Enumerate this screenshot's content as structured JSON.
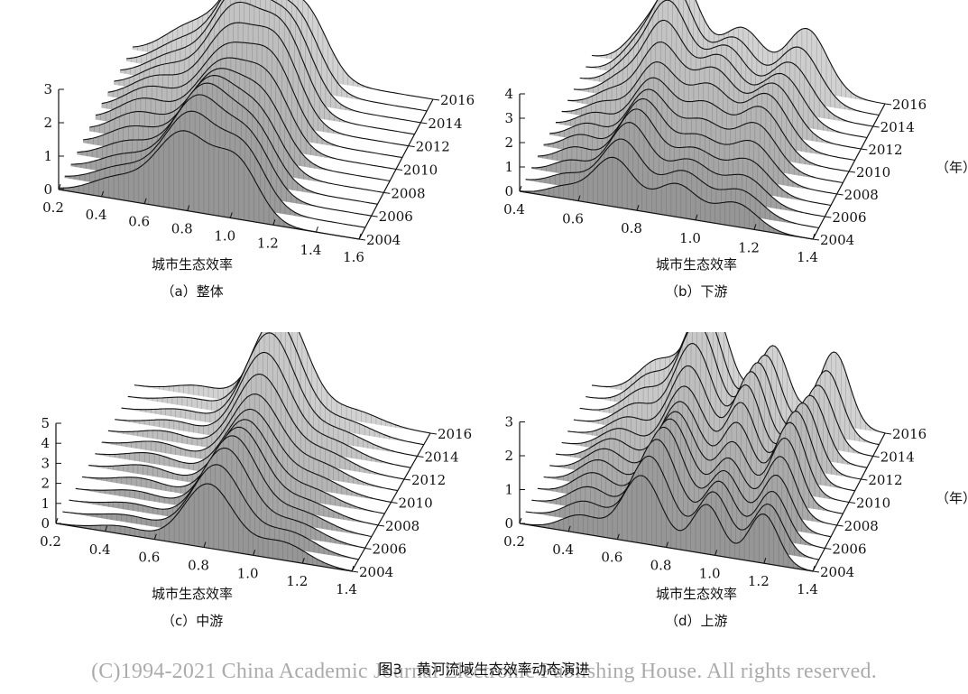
{
  "figure_title": "图3　黄河流域生态效率动态演进",
  "watermark": "(C)1994-2021 China Academic Journal Electronic Publishing House. All rights reserved.",
  "year_unit": "（年）",
  "chart_data": [
    {
      "type": "surface",
      "caption": "（a）整体",
      "xlabel": "城市生态效率",
      "x_ticks": [
        "0.2",
        "0.4",
        "0.6",
        "0.8",
        "1.0",
        "1.2",
        "1.4",
        "1.6"
      ],
      "xlim": [
        0.2,
        1.6
      ],
      "z_ticks": [
        "0",
        "1",
        "2",
        "3"
      ],
      "zlim": [
        0,
        3
      ],
      "y_ticks": [
        "2004",
        "2006",
        "2008",
        "2010",
        "2012",
        "2014",
        "2016"
      ],
      "years": [
        2004,
        2005,
        2006,
        2007,
        2008,
        2009,
        2010,
        2011,
        2012,
        2013,
        2014,
        2015,
        2016
      ],
      "peaks": [
        {
          "x": 0.78,
          "height_start": 2.3,
          "height_end": 2.9,
          "width": 0.13
        },
        {
          "x": 1.02,
          "height_start": 1.4,
          "height_end": 2.0,
          "width": 0.1
        },
        {
          "x": 0.45,
          "height_start": 0.6,
          "height_end": 0.9,
          "width": 0.12
        }
      ]
    },
    {
      "type": "surface",
      "caption": "（b）下游",
      "xlabel": "城市生态效率",
      "x_ticks": [
        "0.4",
        "0.6",
        "0.8",
        "1.0",
        "1.2",
        "1.4"
      ],
      "xlim": [
        0.4,
        1.4
      ],
      "z_ticks": [
        "0",
        "1",
        "2",
        "3",
        "4"
      ],
      "zlim": [
        0,
        4
      ],
      "y_ticks": [
        "2004",
        "2006",
        "2008",
        "2010",
        "2012",
        "2014",
        "2016"
      ],
      "years": [
        2004,
        2005,
        2006,
        2007,
        2008,
        2009,
        2010,
        2011,
        2012,
        2013,
        2014,
        2015,
        2016
      ],
      "peaks": [
        {
          "x": 0.72,
          "height_start": 2.0,
          "height_end": 3.6,
          "width": 0.07
        },
        {
          "x": 0.92,
          "height_start": 1.2,
          "height_end": 2.4,
          "width": 0.07
        },
        {
          "x": 1.12,
          "height_start": 1.0,
          "height_end": 2.6,
          "width": 0.07
        },
        {
          "x": 0.55,
          "height_start": 0.5,
          "height_end": 0.9,
          "width": 0.06
        }
      ]
    },
    {
      "type": "surface",
      "caption": "（c）中游",
      "xlabel": "城市生态效率",
      "x_ticks": [
        "0.2",
        "0.4",
        "0.6",
        "0.8",
        "1.0",
        "1.2",
        "1.4"
      ],
      "xlim": [
        0.2,
        1.4
      ],
      "z_ticks": [
        "0",
        "1",
        "2",
        "3",
        "4",
        "5"
      ],
      "zlim": [
        0,
        5
      ],
      "y_ticks": [
        "2004",
        "2006",
        "2008",
        "2010",
        "2012",
        "2014",
        "2016"
      ],
      "years": [
        2004,
        2005,
        2006,
        2007,
        2008,
        2009,
        2010,
        2011,
        2012,
        2013,
        2014,
        2015,
        2016
      ],
      "peaks": [
        {
          "x": 0.82,
          "height_start": 3.2,
          "height_end": 4.7,
          "width": 0.1
        },
        {
          "x": 1.1,
          "height_start": 0.8,
          "height_end": 0.6,
          "width": 0.1
        },
        {
          "x": 0.45,
          "height_start": 0.4,
          "height_end": 0.5,
          "width": 0.1
        }
      ]
    },
    {
      "type": "surface",
      "caption": "（d）上游",
      "xlabel": "城市生态效率",
      "x_ticks": [
        "0.2",
        "0.4",
        "0.6",
        "0.8",
        "1.0",
        "1.2",
        "1.4"
      ],
      "xlim": [
        0.2,
        1.4
      ],
      "z_ticks": [
        "0",
        "1",
        "2",
        "3"
      ],
      "zlim": [
        0,
        3
      ],
      "y_ticks": [
        "2004",
        "2006",
        "2008",
        "2010",
        "2012",
        "2014",
        "2016"
      ],
      "years": [
        2004,
        2005,
        2006,
        2007,
        2008,
        2009,
        2010,
        2011,
        2012,
        2013,
        2014,
        2015,
        2016
      ],
      "peaks": [
        {
          "x": 0.7,
          "height_start": 2.0,
          "height_end": 2.9,
          "width": 0.08
        },
        {
          "x": 0.95,
          "height_start": 1.3,
          "height_end": 2.3,
          "width": 0.06
        },
        {
          "x": 1.18,
          "height_start": 1.5,
          "height_end": 2.2,
          "width": 0.06
        },
        {
          "x": 0.45,
          "height_start": 0.6,
          "height_end": 0.9,
          "width": 0.08
        }
      ]
    }
  ]
}
